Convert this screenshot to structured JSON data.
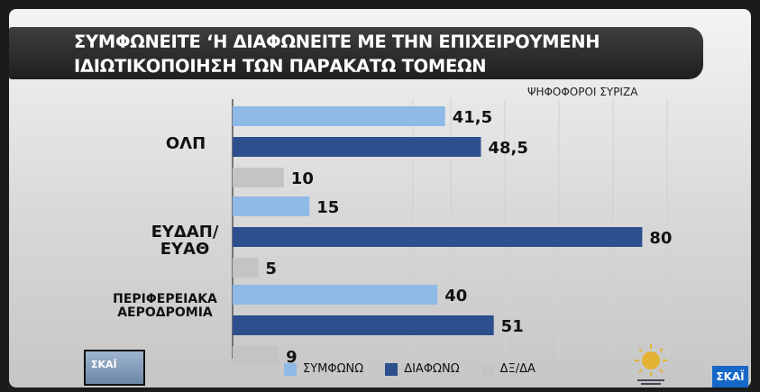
{
  "chart_data": {
    "type": "bar",
    "orientation": "horizontal",
    "title": "ΣΥΜΦΩΝΕΙΤΕ ‘Η ΔΙΑΦΩΝΕΙΤΕ ΜΕ ΤΗΝ ΕΠΙΧΕΙΡΟΥΜΕΝΗ ΙΔΙΩΤΙΚΟΠΟΙΗΣΗ ΤΩΝ ΠΑΡΑΚΑΤΩ ΤΟΜΕΩΝ",
    "title_lines": [
      "ΣΥΜΦΩΝΕΙΤΕ ‘Η ΔΙΑΦΩΝΕΙΤΕ ΜΕ ΤΗΝ ΕΠΙΧΕΙΡΟΥΜΕΝΗ",
      "ΙΔΙΩΤΙΚΟΠΟΙΗΣΗ ΤΩΝ ΠΑΡΑΚΑΤΩ ΤΟΜΕΩΝ"
    ],
    "subtitle": "ΨΗΦΟΦΟΡΟΙ ΣΥΡΙΖΑ",
    "categories": [
      "ΟΛΠ",
      "ΕΥΔΑΠ/\nΕΥΑΘ",
      "ΠΕΡΙΦΕΡΕΙΑΚΑ\nΑΕΡΟΔΡΟΜΙΑ"
    ],
    "series": [
      {
        "name": "ΣΥΜΦΩΝΩ",
        "color": "#8fb9e6",
        "values": [
          41.5,
          15,
          40
        ]
      },
      {
        "name": "ΔΙΑΦΩΝΩ",
        "color": "#2d4f8e",
        "values": [
          48.5,
          80,
          51
        ]
      },
      {
        "name": "ΔΞ/ΔΑ",
        "color": "#c4c4c2",
        "values": [
          10,
          5,
          9
        ]
      }
    ],
    "data_labels": [
      [
        "41,5",
        "15",
        "40"
      ],
      [
        "48,5",
        "80",
        "51"
      ],
      [
        "10",
        "5",
        "9"
      ]
    ],
    "xlim": [
      0,
      100
    ],
    "grid": false,
    "legend_position": "bottom"
  },
  "branding": {
    "channel_logo": "ΣΚΑΪ",
    "corner_logo": "ΣΚΑΪ"
  }
}
